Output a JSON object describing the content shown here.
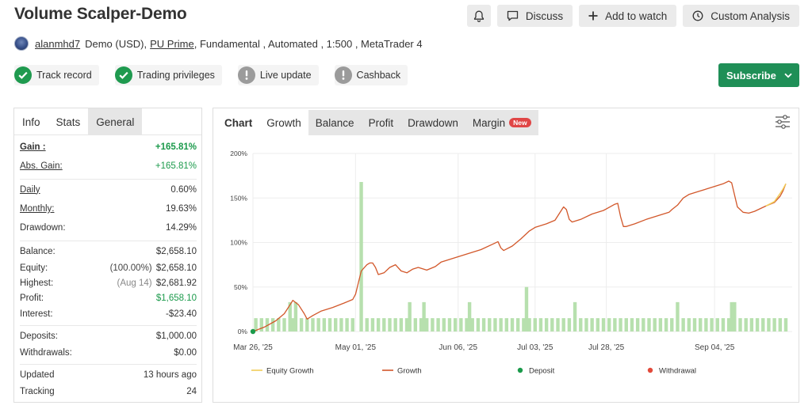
{
  "header": {
    "title": "Volume Scalper-Demo",
    "discuss": "Discuss",
    "add_watch": "Add to watch",
    "custom_analysis": "Custom Analysis"
  },
  "meta": {
    "username": "alanmhd7",
    "account": "Demo (USD),",
    "broker": "PU Prime",
    "rest": ", Fundamental , Automated , 1:500 , MetaTrader 4"
  },
  "badges": [
    {
      "label": "Track record",
      "status": "ok"
    },
    {
      "label": "Trading privileges",
      "status": "ok"
    },
    {
      "label": "Live update",
      "status": "warn"
    },
    {
      "label": "Cashback",
      "status": "warn"
    }
  ],
  "subscribe": "Subscribe",
  "info_tabs": [
    "Info",
    "Stats",
    "General"
  ],
  "stats": {
    "gain_label": "Gain :",
    "gain": "+165.81%",
    "abs_gain_label": "Abs. Gain:",
    "abs_gain": "+165.81%",
    "daily_label": "Daily",
    "daily": "0.60%",
    "monthly_label": "Monthly:",
    "monthly": "19.63%",
    "drawdown_label": "Drawdown:",
    "drawdown": "14.29%",
    "balance_label": "Balance:",
    "balance": "$2,658.10",
    "equity_label": "Equity:",
    "equity_pct": "(100.00%)",
    "equity": "$2,658.10",
    "highest_label": "Highest:",
    "highest_date": "(Aug 14)",
    "highest": "$2,681.92",
    "profit_label": "Profit:",
    "profit": "$1,658.10",
    "interest_label": "Interest:",
    "interest": "-$23.40",
    "deposits_label": "Deposits:",
    "deposits": "$1,000.00",
    "withdrawals_label": "Withdrawals:",
    "withdrawals": "$0.00",
    "updated_label": "Updated",
    "updated": "13 hours ago",
    "tracking_label": "Tracking",
    "tracking": "24"
  },
  "chart_tabs": {
    "chart": "Chart",
    "growth": "Growth",
    "balance": "Balance",
    "profit": "Profit",
    "drawdown": "Drawdown",
    "margin": "Margin",
    "new": "New"
  },
  "colors": {
    "green": "#1b9a4b",
    "growth_line": "#d2572a",
    "equity_line": "#f2cc58",
    "bars": "#b7e0ae",
    "deposit": "#1b9a4b",
    "withdrawal": "#e24a3b"
  },
  "chart_data": {
    "type": "line",
    "ylim": [
      0,
      200
    ],
    "y_ticks": [
      "0%",
      "50%",
      "100%",
      "150%",
      "200%"
    ],
    "x_tick_labels": [
      "Mar 26, '25",
      "May 01, '25",
      "Jun 06, '25",
      "Jul 03, '25",
      "Jul 28, '25",
      "Sep 04, '25"
    ],
    "x_tick_days": [
      0,
      36,
      72,
      99,
      124,
      162
    ],
    "legend": [
      "Equity Growth",
      "Growth",
      "Deposit",
      "Withdrawal"
    ],
    "growth": [
      [
        0,
        0
      ],
      [
        4,
        5
      ],
      [
        8,
        12
      ],
      [
        11,
        20
      ],
      [
        13,
        30
      ],
      [
        14,
        35
      ],
      [
        16,
        30
      ],
      [
        18,
        20
      ],
      [
        19,
        14
      ],
      [
        21,
        18
      ],
      [
        24,
        23
      ],
      [
        28,
        27
      ],
      [
        32,
        32
      ],
      [
        35,
        36
      ],
      [
        36,
        42
      ],
      [
        37,
        55
      ],
      [
        38,
        68
      ],
      [
        40,
        75
      ],
      [
        41,
        77
      ],
      [
        42,
        77
      ],
      [
        43,
        72
      ],
      [
        44,
        64
      ],
      [
        46,
        66
      ],
      [
        48,
        72
      ],
      [
        50,
        75
      ],
      [
        52,
        68
      ],
      [
        54,
        66
      ],
      [
        56,
        70
      ],
      [
        58,
        72
      ],
      [
        61,
        69
      ],
      [
        64,
        73
      ],
      [
        66,
        78
      ],
      [
        68,
        80
      ],
      [
        72,
        84
      ],
      [
        76,
        88
      ],
      [
        80,
        92
      ],
      [
        84,
        98
      ],
      [
        86,
        101
      ],
      [
        87,
        94
      ],
      [
        88,
        91
      ],
      [
        91,
        96
      ],
      [
        94,
        104
      ],
      [
        97,
        113
      ],
      [
        99,
        117
      ],
      [
        103,
        121
      ],
      [
        106,
        125
      ],
      [
        108,
        135
      ],
      [
        109,
        140
      ],
      [
        110,
        137
      ],
      [
        111,
        126
      ],
      [
        112,
        123
      ],
      [
        115,
        126
      ],
      [
        119,
        132
      ],
      [
        123,
        136
      ],
      [
        127,
        143
      ],
      [
        128,
        144
      ],
      [
        129,
        129
      ],
      [
        130,
        118
      ],
      [
        131,
        118
      ],
      [
        134,
        121
      ],
      [
        138,
        126
      ],
      [
        143,
        131
      ],
      [
        146,
        134
      ],
      [
        147,
        137
      ],
      [
        149,
        142
      ],
      [
        151,
        150
      ],
      [
        153,
        154
      ],
      [
        157,
        158
      ],
      [
        161,
        162
      ],
      [
        165,
        166
      ],
      [
        167,
        169
      ],
      [
        168,
        167
      ],
      [
        170,
        140
      ],
      [
        172,
        134
      ],
      [
        174,
        133
      ],
      [
        176,
        135
      ],
      [
        180,
        141
      ],
      [
        183,
        145
      ],
      [
        185,
        152
      ],
      [
        186,
        158
      ],
      [
        187,
        166
      ]
    ],
    "equity_growth": [
      [
        180,
        141
      ],
      [
        183,
        146
      ],
      [
        185,
        155
      ],
      [
        186,
        160
      ],
      [
        187,
        166
      ]
    ],
    "bars_days": [
      1,
      3,
      5,
      7,
      9,
      11,
      13,
      14,
      15,
      17,
      19,
      21,
      23,
      25,
      27,
      29,
      31,
      33,
      35,
      38,
      40,
      42,
      44,
      46,
      48,
      50,
      52,
      54,
      55,
      57,
      59,
      60,
      61,
      63,
      65,
      67,
      69,
      71,
      73,
      75,
      76,
      77,
      79,
      81,
      83,
      85,
      87,
      89,
      91,
      93,
      95,
      96,
      97,
      99,
      101,
      103,
      105,
      107,
      109,
      111,
      113,
      115,
      117,
      119,
      121,
      123,
      125,
      127,
      129,
      131,
      133,
      135,
      137,
      139,
      141,
      143,
      145,
      147,
      149,
      151,
      153,
      155,
      157,
      159,
      161,
      163,
      165,
      167,
      168,
      169,
      171,
      173,
      175,
      177,
      179,
      181,
      183,
      185,
      187
    ],
    "bars_values": [
      15,
      15,
      15,
      15,
      15,
      15,
      33,
      15,
      33,
      15,
      15,
      15,
      15,
      15,
      15,
      15,
      15,
      15,
      15,
      168,
      15,
      15,
      15,
      15,
      15,
      15,
      15,
      15,
      33,
      15,
      15,
      33,
      15,
      15,
      15,
      15,
      15,
      15,
      15,
      15,
      33,
      15,
      15,
      15,
      15,
      15,
      15,
      15,
      15,
      15,
      15,
      50,
      15,
      15,
      15,
      15,
      15,
      15,
      15,
      15,
      33,
      15,
      15,
      15,
      15,
      15,
      15,
      15,
      15,
      15,
      15,
      15,
      15,
      15,
      15,
      15,
      15,
      15,
      33,
      15,
      15,
      15,
      15,
      15,
      15,
      15,
      15,
      15,
      33,
      33,
      15,
      15,
      15,
      15,
      15,
      15,
      15,
      15,
      15
    ],
    "deposit": [
      [
        0,
        0
      ]
    ]
  }
}
